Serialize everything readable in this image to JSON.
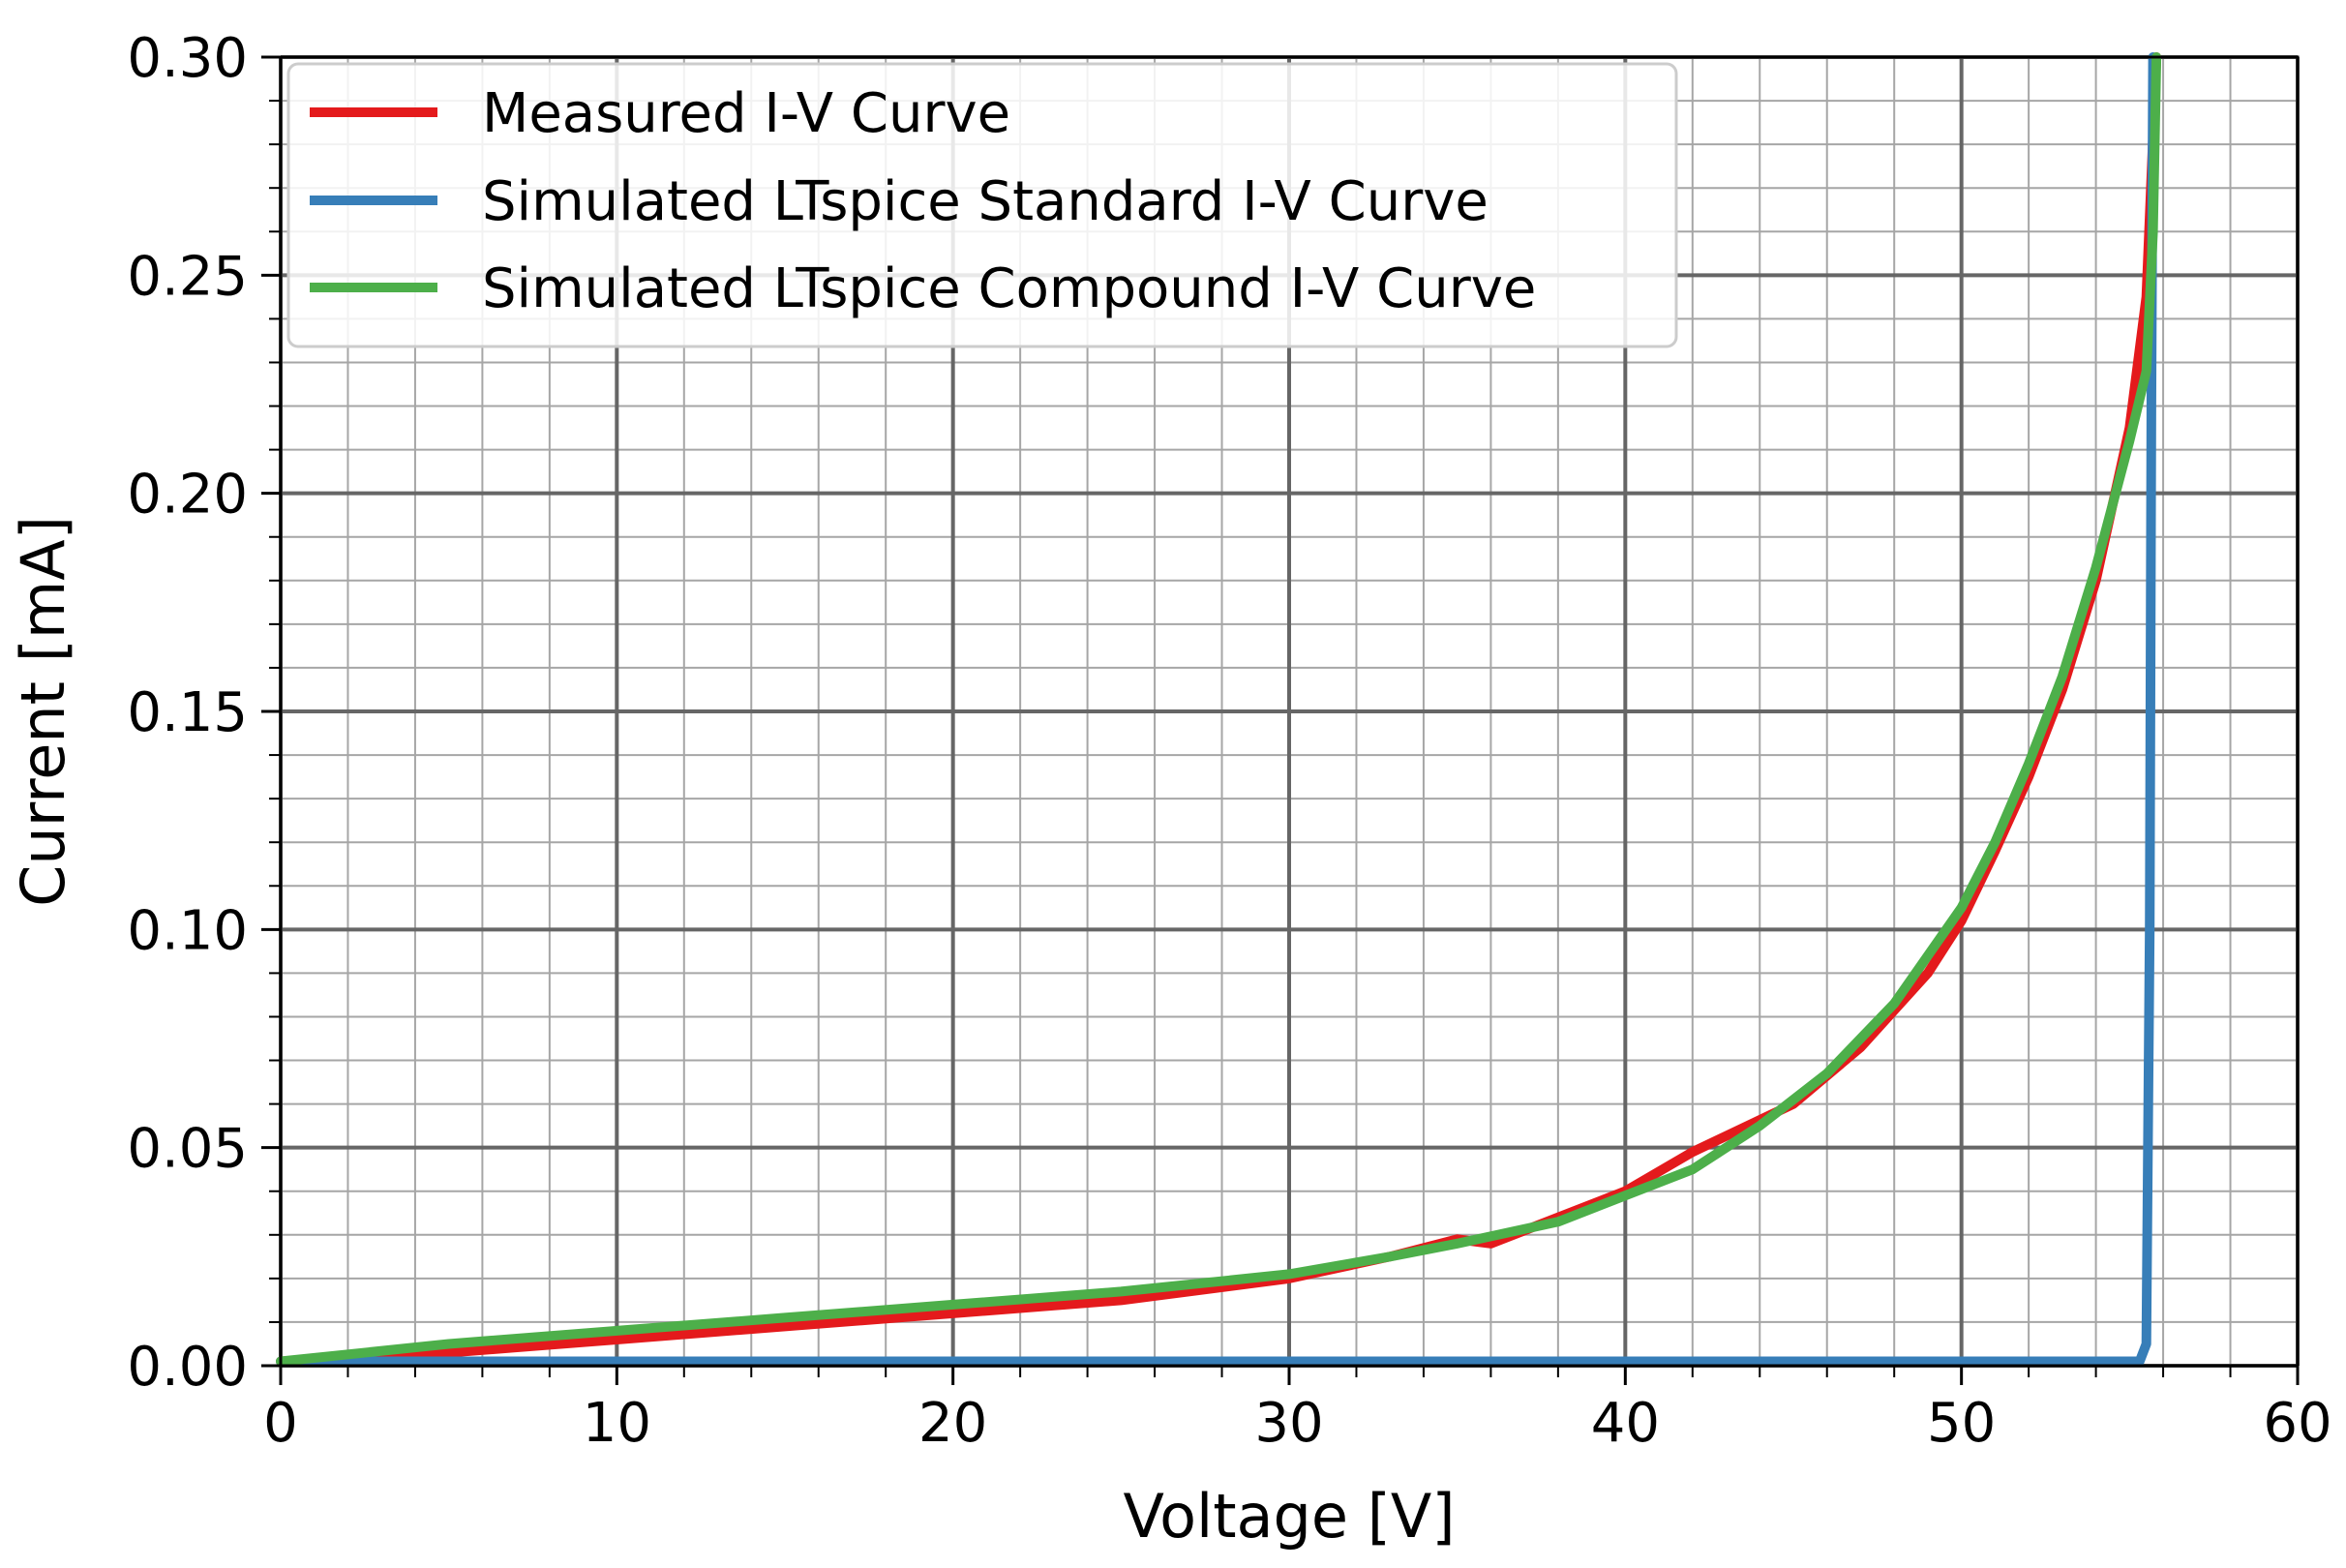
{
  "chart_data": {
    "type": "line",
    "title": "",
    "xlabel": "Voltage [V]",
    "ylabel": "Current [mA]",
    "xlim": [
      0,
      60
    ],
    "ylim": [
      0,
      0.3
    ],
    "xticks": [
      0,
      10,
      20,
      30,
      40,
      50,
      60
    ],
    "xtick_labels": [
      "0",
      "10",
      "20",
      "30",
      "40",
      "50",
      "60"
    ],
    "yticks": [
      0,
      0.05,
      0.1,
      0.15,
      0.2,
      0.25,
      0.3
    ],
    "ytick_labels": [
      "0.00",
      "0.05",
      "0.10",
      "0.15",
      "0.20",
      "0.25",
      "0.30"
    ],
    "x_minor_step": 2,
    "y_minor_step": 0.01,
    "grid": "major and minor",
    "legend_position": "top-left",
    "series": [
      {
        "name": "Measured I-V Curve",
        "color": "#e41a1c",
        "x": [
          0,
          5,
          10,
          15,
          20,
          25,
          30,
          33,
          35,
          36,
          37,
          40,
          42,
          45,
          47,
          49,
          50,
          51,
          52,
          53,
          54,
          55,
          55.5,
          55.8
        ],
        "y": [
          0.001,
          0.003,
          0.006,
          0.009,
          0.012,
          0.015,
          0.02,
          0.025,
          0.029,
          0.028,
          0.031,
          0.04,
          0.049,
          0.06,
          0.073,
          0.09,
          0.102,
          0.118,
          0.135,
          0.155,
          0.18,
          0.215,
          0.245,
          0.3
        ]
      },
      {
        "name": "Simulated LTspice Standard I-V Curve",
        "color": "#377eb8",
        "x": [
          0,
          10,
          20,
          30,
          40,
          50,
          55.3,
          55.5,
          55.6,
          55.65,
          55.7
        ],
        "y": [
          0.001,
          0.001,
          0.001,
          0.001,
          0.001,
          0.001,
          0.001,
          0.005,
          0.1,
          0.22,
          0.3
        ]
      },
      {
        "name": "Simulated LTspice Compound I-V Curve",
        "color": "#4daf4a",
        "x": [
          0,
          5,
          10,
          15,
          20,
          25,
          30,
          33,
          35,
          38,
          40,
          42,
          44,
          46,
          48,
          50,
          51,
          52,
          53,
          54,
          55,
          55.5,
          55.7,
          55.8
        ],
        "y": [
          0.001,
          0.005,
          0.008,
          0.011,
          0.014,
          0.017,
          0.021,
          0.025,
          0.028,
          0.033,
          0.039,
          0.045,
          0.055,
          0.067,
          0.083,
          0.105,
          0.12,
          0.138,
          0.158,
          0.183,
          0.212,
          0.228,
          0.26,
          0.3
        ]
      }
    ]
  }
}
